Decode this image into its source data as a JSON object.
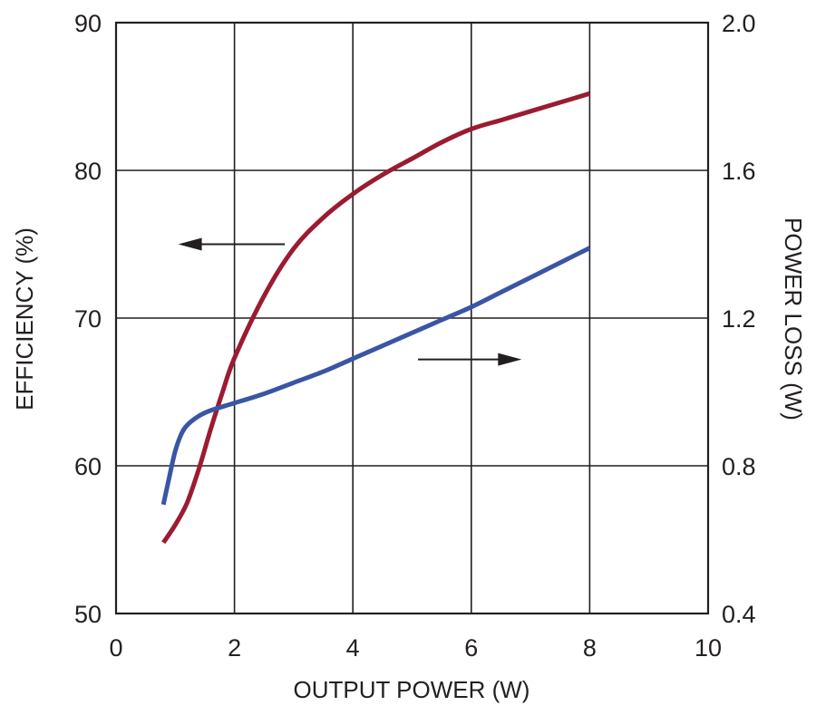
{
  "chart_data": {
    "type": "line",
    "xlabel": "OUTPUT POWER (W)",
    "ylabel": "EFFICIENCY (%)",
    "y2label": "POWER LOSS (W)",
    "xlim": [
      0,
      10
    ],
    "ylim": [
      50,
      90
    ],
    "y2lim": [
      0.4,
      2.0
    ],
    "x_ticks": [
      "0",
      "2",
      "4",
      "6",
      "8",
      "10"
    ],
    "y_ticks": [
      "50",
      "60",
      "70",
      "80",
      "90"
    ],
    "y2_ticks": [
      "0.4",
      "0.8",
      "1.2",
      "1.6",
      "2.0"
    ],
    "grid": true,
    "series": [
      {
        "axis": "left",
        "color": "#9b1b30",
        "x": [
          0.8,
          1.0,
          1.2,
          1.4,
          1.6,
          1.8,
          2.0,
          2.5,
          3.0,
          3.5,
          4.0,
          4.5,
          5.0,
          5.5,
          6.0,
          6.5,
          7.0,
          7.5,
          8.0
        ],
        "y": [
          54.8,
          56.0,
          57.5,
          59.8,
          62.5,
          65.0,
          67.3,
          71.5,
          74.7,
          76.8,
          78.4,
          79.7,
          80.8,
          81.9,
          82.8,
          83.4,
          84.0,
          84.6,
          85.2
        ]
      },
      {
        "axis": "right",
        "color": "#3a55a4",
        "x": [
          0.8,
          0.9,
          1.0,
          1.1,
          1.2,
          1.4,
          1.6,
          2.0,
          2.5,
          3.0,
          3.5,
          4.0,
          4.5,
          5.0,
          5.5,
          6.0,
          6.5,
          7.0,
          7.5,
          8.0
        ],
        "y": [
          0.695,
          0.77,
          0.84,
          0.885,
          0.91,
          0.935,
          0.95,
          0.97,
          0.995,
          1.025,
          1.055,
          1.09,
          1.125,
          1.16,
          1.195,
          1.23,
          1.27,
          1.31,
          1.35,
          1.39
        ]
      }
    ],
    "annotations": [
      {
        "type": "arrow",
        "direction": "left",
        "points_to": "left-axis",
        "from": [
          2.85,
          75.0
        ],
        "to": [
          1.05,
          75.0
        ]
      },
      {
        "type": "arrow",
        "direction": "right",
        "points_to": "right-axis",
        "from": [
          5.1,
          67.2
        ],
        "to": [
          6.85,
          67.2
        ]
      }
    ]
  }
}
